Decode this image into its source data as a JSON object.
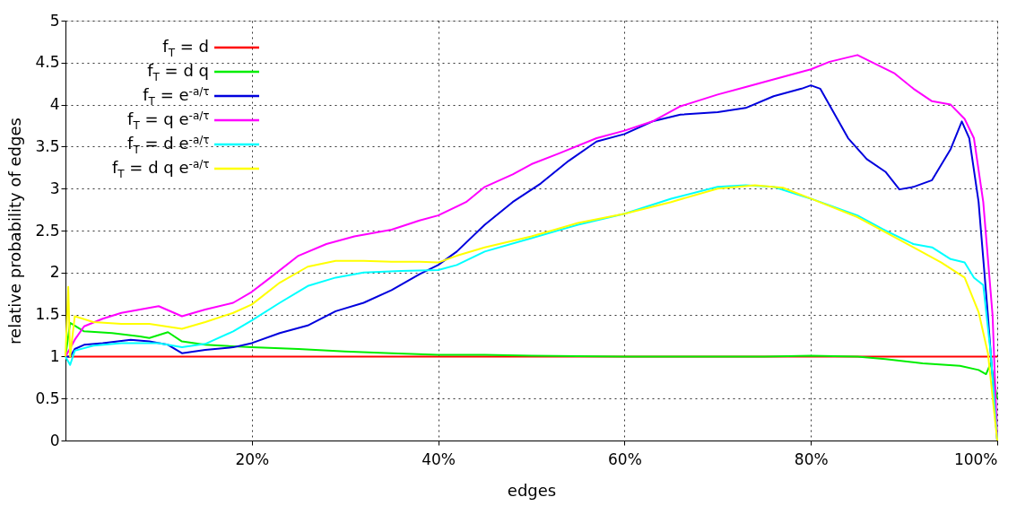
{
  "chart_data": {
    "type": "line",
    "xlabel": "edges",
    "ylabel": "relative probability of edges",
    "xlim": [
      0,
      100
    ],
    "ylim": [
      0,
      5
    ],
    "xticks": [
      {
        "value": 20,
        "label": "20%"
      },
      {
        "value": 40,
        "label": "40%"
      },
      {
        "value": 60,
        "label": "60%"
      },
      {
        "value": 80,
        "label": "80%"
      },
      {
        "value": 100,
        "label": "100%"
      }
    ],
    "yticks": [
      0,
      0.5,
      1,
      1.5,
      2,
      2.5,
      3,
      3.5,
      4,
      4.5,
      5
    ],
    "grid": true,
    "legend": "top left",
    "marker": "none",
    "line_style": "solid",
    "series": [
      {
        "name": "f$_{T}$ = d",
        "color": "#ff0000",
        "x": [
          0,
          100
        ],
        "values": [
          1,
          1
        ]
      },
      {
        "name": "f$_{T}$ = d q",
        "color": "#00ee00",
        "x": [
          0,
          0.5,
          2,
          5,
          8,
          9,
          11,
          12.5,
          15,
          20,
          25,
          30,
          35,
          40,
          45,
          50,
          60,
          75,
          80,
          85,
          88,
          92,
          96,
          98,
          98.8,
          99.3,
          100
        ],
        "values": [
          1,
          1.4,
          1.3,
          1.28,
          1.24,
          1.22,
          1.29,
          1.18,
          1.14,
          1.11,
          1.09,
          1.06,
          1.04,
          1.02,
          1.02,
          1.01,
          1,
          1,
          1.01,
          1,
          0.97,
          0.92,
          0.89,
          0.84,
          0.79,
          0.92,
          0.5
        ]
      },
      {
        "name": "f$_{T}$ = e$^{-a/τ}$",
        "color": "#0000dd",
        "x": [
          0,
          0.5,
          1,
          2,
          4,
          7,
          9,
          11,
          12.5,
          15,
          18,
          20,
          23,
          26,
          29,
          32,
          35,
          38,
          40,
          42,
          45,
          48,
          51,
          54,
          57,
          60,
          63,
          66,
          70,
          73,
          76,
          79,
          80,
          81,
          84,
          86,
          88,
          89.5,
          91,
          93,
          95,
          96.2,
          97,
          98,
          99,
          100
        ],
        "values": [
          1,
          1,
          1.09,
          1.14,
          1.16,
          1.2,
          1.18,
          1.14,
          1.04,
          1.08,
          1.11,
          1.16,
          1.28,
          1.37,
          1.54,
          1.64,
          1.79,
          1.98,
          2.09,
          2.25,
          2.57,
          2.84,
          3.06,
          3.33,
          3.56,
          3.65,
          3.8,
          3.88,
          3.91,
          3.96,
          4.1,
          4.19,
          4.23,
          4.19,
          3.6,
          3.35,
          3.2,
          2.99,
          3.02,
          3.1,
          3.47,
          3.8,
          3.6,
          2.84,
          1.49,
          0
        ]
      },
      {
        "name": "f$_{T}$ = q e$^{-a/τ}$",
        "color": "#ff00ff",
        "x": [
          0,
          1,
          2,
          4,
          6,
          8,
          10,
          12.5,
          15,
          18,
          20,
          22,
          25,
          28,
          31,
          35,
          38,
          40,
          43,
          45,
          48,
          50,
          53,
          57,
          60,
          63,
          66,
          70,
          73,
          76,
          80,
          82,
          85,
          87,
          89,
          91,
          93,
          95,
          96.5,
          97.5,
          98.5,
          99.5,
          100
        ],
        "values": [
          1,
          1.2,
          1.36,
          1.45,
          1.52,
          1.56,
          1.6,
          1.48,
          1.56,
          1.64,
          1.77,
          1.94,
          2.2,
          2.34,
          2.43,
          2.51,
          2.62,
          2.68,
          2.84,
          3.02,
          3.17,
          3.29,
          3.42,
          3.6,
          3.69,
          3.8,
          3.98,
          4.12,
          4.21,
          4.3,
          4.42,
          4.51,
          4.59,
          4.48,
          4.37,
          4.19,
          4.04,
          4,
          3.83,
          3.6,
          2.84,
          1.49,
          0
        ]
      },
      {
        "name": "f$_{T}$ = d e$^{-a/τ}$",
        "color": "#00ffff",
        "x": [
          0,
          0.5,
          1,
          3,
          6,
          10,
          12.5,
          15,
          18,
          20,
          23,
          26,
          29,
          32,
          36,
          40,
          42,
          45,
          50,
          55,
          60,
          65,
          70,
          73,
          76,
          80,
          85,
          88,
          91,
          93,
          95,
          96.5,
          97.5,
          98.5,
          99.3,
          100
        ],
        "values": [
          1,
          0.9,
          1.07,
          1.13,
          1.16,
          1.16,
          1.11,
          1.15,
          1.3,
          1.43,
          1.64,
          1.84,
          1.94,
          2,
          2.02,
          2.03,
          2.09,
          2.25,
          2.41,
          2.57,
          2.7,
          2.88,
          3.02,
          3.04,
          3.02,
          2.88,
          2.68,
          2.5,
          2.34,
          2.3,
          2.16,
          2.12,
          1.94,
          1.85,
          1.04,
          0
        ]
      },
      {
        "name": "f$_{T}$ = d q e$^{-a/τ}$",
        "color": "#ffff00",
        "x": [
          0,
          0.3,
          0.5,
          1,
          3,
          6,
          9,
          12.5,
          15,
          18,
          20,
          23,
          26,
          29,
          32,
          35,
          38,
          40,
          42,
          45,
          50,
          55,
          60,
          65,
          70,
          74,
          77,
          80,
          85,
          88,
          91,
          94,
          96.5,
          98,
          99,
          100
        ],
        "values": [
          1,
          1.83,
          1,
          1.48,
          1.41,
          1.39,
          1.39,
          1.33,
          1.41,
          1.52,
          1.62,
          1.88,
          2.07,
          2.14,
          2.14,
          2.13,
          2.13,
          2.12,
          2.2,
          2.3,
          2.43,
          2.59,
          2.7,
          2.84,
          3,
          3.04,
          3.01,
          2.88,
          2.66,
          2.48,
          2.3,
          2.12,
          1.94,
          1.53,
          1.04,
          0
        ]
      }
    ]
  }
}
